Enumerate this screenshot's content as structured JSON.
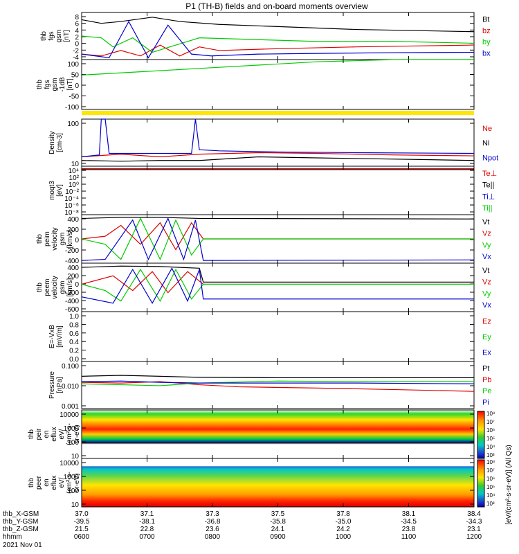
{
  "title": "P1 (TH-B) fields and on-board moments overview",
  "chart_data": [
    {
      "type": "line",
      "panel": "fgs",
      "ylabel_lines": [
        "thb",
        "fgs",
        "gsm",
        "[nT]"
      ],
      "y_ticks": [
        "8",
        "6",
        "4",
        "2",
        "0",
        "-2",
        "-4"
      ],
      "ylim": [
        -4.5,
        8.5
      ],
      "legend": [
        {
          "label": "Bt",
          "color": "#000000"
        },
        {
          "label": "bz",
          "color": "#dd0000"
        },
        {
          "label": "by",
          "color": "#00cc00"
        },
        {
          "label": "bx",
          "color": "#0000cc"
        }
      ],
      "series": [
        {
          "name": "Bt",
          "color": "#000000",
          "x": [
            0.0,
            0.05,
            0.1,
            0.18,
            0.25,
            0.35,
            0.5,
            0.7,
            1.0
          ],
          "y": [
            6.5,
            5.5,
            6.0,
            7.2,
            6.0,
            5.2,
            4.6,
            3.8,
            3.2
          ]
        },
        {
          "name": "bz",
          "color": "#dd0000",
          "x": [
            0.0,
            0.05,
            0.1,
            0.15,
            0.2,
            0.25,
            0.3,
            0.35,
            0.5,
            0.7,
            1.0
          ],
          "y": [
            -3.0,
            -3.5,
            -2.0,
            -3.5,
            -0.5,
            -3.5,
            -1.0,
            -2.0,
            -1.5,
            -1.0,
            -0.5
          ]
        },
        {
          "name": "by",
          "color": "#00cc00",
          "x": [
            0.0,
            0.05,
            0.08,
            0.13,
            0.18,
            0.24,
            0.3,
            0.45,
            0.6,
            0.8,
            1.0
          ],
          "y": [
            2.0,
            1.5,
            -1.0,
            1.5,
            -2.5,
            -0.5,
            1.5,
            1.0,
            0.5,
            0.5,
            0.0
          ]
        },
        {
          "name": "bx",
          "color": "#0000cc",
          "x": [
            0.0,
            0.07,
            0.12,
            0.17,
            0.22,
            0.28,
            0.33,
            0.45,
            0.6,
            0.8,
            1.0
          ],
          "y": [
            -3.0,
            -4.0,
            6.0,
            -4.0,
            5.0,
            -3.0,
            -3.5,
            -3.0,
            -2.8,
            -2.6,
            -2.5
          ]
        }
      ]
    },
    {
      "type": "line",
      "panel": "fgs-1dB",
      "ylabel_lines": [
        "thb",
        "fgs",
        "gsm",
        "-1dB",
        "[nT]"
      ],
      "y_ticks": [
        "100",
        "50",
        "0",
        "-50",
        "-100"
      ],
      "ylim": [
        -120,
        105
      ],
      "series": [
        {
          "name": "",
          "color": "#00cc00",
          "x": [
            0.0,
            0.15,
            0.3,
            0.45,
            0.6,
            0.8,
            1.0
          ],
          "y": [
            35,
            50,
            65,
            80,
            95,
            105,
            105
          ]
        }
      ]
    },
    {
      "type": "line",
      "panel": "density",
      "ylabel_lines": [
        "Density",
        "[cm-3]"
      ],
      "y_ticks": [
        "100",
        "10"
      ],
      "yscale": "log",
      "ylim": [
        4,
        400
      ],
      "legend": [
        {
          "label": "Ne",
          "color": "#dd0000"
        },
        {
          "label": "Ni",
          "color": "#000000"
        },
        {
          "label": "Npot",
          "color": "#0000cc"
        }
      ],
      "series": [
        {
          "name": "Ne",
          "color": "#dd0000",
          "x": [
            0.0,
            0.1,
            0.2,
            0.3,
            0.45,
            0.6,
            0.8,
            1.0
          ],
          "y": [
            10,
            13,
            10,
            13,
            15,
            14,
            12,
            11
          ]
        },
        {
          "name": "Ni",
          "color": "#000000",
          "x": [
            0.0,
            0.1,
            0.2,
            0.3,
            0.45,
            0.6,
            0.8,
            1.0
          ],
          "y": [
            7,
            6.5,
            7,
            7,
            10,
            9,
            8,
            7
          ]
        },
        {
          "name": "Npot",
          "color": "#0000cc",
          "x": [
            0.0,
            0.045,
            0.05,
            0.06,
            0.07,
            0.28,
            0.29,
            0.3,
            0.35,
            0.5,
            0.7,
            1.0
          ],
          "y": [
            10,
            12,
            400,
            400,
            14,
            14,
            400,
            20,
            18,
            16,
            15,
            14
          ]
        }
      ]
    },
    {
      "type": "line",
      "panel": "temperature",
      "ylabel_lines": [
        "moqt3",
        "[eV]"
      ],
      "y_ticks": [
        "10⁴",
        "10²",
        "10⁰",
        "10⁻²",
        "10⁻⁴",
        "10⁻⁶",
        "10⁻⁸"
      ],
      "legend": [
        {
          "label": "Te⊥",
          "color": "#dd0000"
        },
        {
          "label": "Te||",
          "color": "#000000"
        },
        {
          "label": "Ti⊥",
          "color": "#0000cc"
        },
        {
          "label": "Ti||",
          "color": "#00cc00"
        }
      ],
      "series": [
        {
          "name": "Te⊥",
          "color": "#dd0000",
          "x": [
            0.0,
            1.0
          ],
          "y": [
            0.95,
            0.95
          ]
        },
        {
          "name": "Te||",
          "color": "#000000",
          "x": [
            0.0,
            1.0
          ],
          "y": [
            0.93,
            0.93
          ]
        }
      ]
    },
    {
      "type": "line",
      "panel": "peim-velocity",
      "ylabel_lines": [
        "thb",
        "peim",
        "velocity",
        "gsm",
        "[km/s]"
      ],
      "y_ticks": [
        "400",
        "200",
        "0",
        "-200",
        "-400"
      ],
      "ylim": [
        -450,
        450
      ],
      "legend": [
        {
          "label": "Vt",
          "color": "#000000"
        },
        {
          "label": "Vz",
          "color": "#dd0000"
        },
        {
          "label": "Vy",
          "color": "#00cc00"
        },
        {
          "label": "Vx",
          "color": "#0000cc"
        }
      ],
      "series": [
        {
          "name": "Vt",
          "color": "#000000",
          "x": [
            0.0,
            0.1,
            0.2,
            0.3,
            1.0
          ],
          "y": [
            380,
            400,
            400,
            380,
            370
          ]
        },
        {
          "name": "Vz",
          "color": "#dd0000",
          "x": [
            0.0,
            0.06,
            0.1,
            0.15,
            0.2,
            0.24,
            0.28,
            0.31,
            1.0
          ],
          "y": [
            0,
            50,
            250,
            -100,
            300,
            -200,
            300,
            0,
            0
          ]
        },
        {
          "name": "Vy",
          "color": "#00cc00",
          "x": [
            0.0,
            0.06,
            0.1,
            0.15,
            0.2,
            0.24,
            0.28,
            0.31,
            1.0
          ],
          "y": [
            0,
            -100,
            -380,
            380,
            -380,
            350,
            -300,
            0,
            0
          ]
        },
        {
          "name": "Vx",
          "color": "#0000cc",
          "x": [
            0.0,
            0.06,
            0.13,
            0.17,
            0.22,
            0.26,
            0.29,
            0.31,
            1.0
          ],
          "y": [
            -400,
            -380,
            350,
            -380,
            380,
            -380,
            350,
            -400,
            -390
          ]
        }
      ]
    },
    {
      "type": "line",
      "panel": "peem-velocity",
      "ylabel_lines": [
        "thb",
        "peem",
        "velocity",
        "gsm",
        "[km/s]"
      ],
      "y_ticks": [
        "400",
        "200",
        "0",
        "-200",
        "-400",
        "-600"
      ],
      "ylim": [
        -650,
        500
      ],
      "legend": [
        {
          "label": "Vt",
          "color": "#000000"
        },
        {
          "label": "Vz",
          "color": "#dd0000"
        },
        {
          "label": "Vy",
          "color": "#00cc00"
        },
        {
          "label": "Vx",
          "color": "#0000cc"
        }
      ],
      "series": [
        {
          "name": "Vt",
          "color": "#000000",
          "x": [
            0.0,
            0.1,
            0.2,
            0.3,
            0.31,
            1.0
          ],
          "y": [
            400,
            430,
            420,
            380,
            50,
            50
          ]
        },
        {
          "name": "Vz",
          "color": "#dd0000",
          "x": [
            0.0,
            0.08,
            0.13,
            0.18,
            0.22,
            0.27,
            0.31,
            1.0
          ],
          "y": [
            0,
            200,
            -150,
            300,
            -200,
            300,
            0,
            0
          ]
        },
        {
          "name": "Vy",
          "color": "#00cc00",
          "x": [
            0.0,
            0.06,
            0.1,
            0.15,
            0.2,
            0.24,
            0.28,
            0.31,
            1.0
          ],
          "y": [
            0,
            -150,
            -400,
            350,
            -400,
            350,
            -350,
            0,
            0
          ]
        },
        {
          "name": "Vx",
          "color": "#0000cc",
          "x": [
            0.0,
            0.08,
            0.13,
            0.18,
            0.23,
            0.27,
            0.3,
            0.31,
            1.0
          ],
          "y": [
            -300,
            -450,
            350,
            -450,
            380,
            -400,
            350,
            -350,
            -350
          ]
        }
      ]
    },
    {
      "type": "line",
      "panel": "efield",
      "ylabel_lines": [
        "E=-VxB",
        "[mV/m]"
      ],
      "y_ticks": [
        "1.0",
        "0.8",
        "0.6",
        "0.4",
        "0.2",
        "0.0"
      ],
      "ylim": [
        0,
        1
      ],
      "legend": [
        {
          "label": "Ez",
          "color": "#dd0000"
        },
        {
          "label": "Ey",
          "color": "#00cc00"
        },
        {
          "label": "Ex",
          "color": "#0000cc"
        }
      ],
      "series": []
    },
    {
      "type": "line",
      "panel": "pressure",
      "ylabel_lines": [
        "Pressure",
        "[nPa]"
      ],
      "y_ticks": [
        "0.100",
        "0.010",
        "0.001"
      ],
      "yscale": "log",
      "ylim": [
        0.0005,
        0.15
      ],
      "legend": [
        {
          "label": "Pt",
          "color": "#000000"
        },
        {
          "label": "Pb",
          "color": "#dd0000"
        },
        {
          "label": "Pe",
          "color": "#00cc00"
        },
        {
          "label": "Pi",
          "color": "#0000cc"
        }
      ],
      "series": [
        {
          "name": "Pt",
          "color": "#000000",
          "x": [
            0.0,
            0.1,
            0.2,
            0.3,
            0.5,
            0.7,
            1.0
          ],
          "y": [
            0.025,
            0.028,
            0.025,
            0.022,
            0.021,
            0.021,
            0.021
          ]
        },
        {
          "name": "Pb",
          "color": "#dd0000",
          "x": [
            0.0,
            0.1,
            0.2,
            0.3,
            0.4,
            0.6,
            0.8,
            1.0
          ],
          "y": [
            0.012,
            0.011,
            0.013,
            0.009,
            0.007,
            0.006,
            0.005,
            0.004
          ]
        },
        {
          "name": "Pe",
          "color": "#00cc00",
          "x": [
            0.0,
            0.1,
            0.2,
            0.3,
            0.5,
            0.7,
            1.0
          ],
          "y": [
            0.01,
            0.009,
            0.008,
            0.011,
            0.014,
            0.013,
            0.013
          ]
        },
        {
          "name": "Pi",
          "color": "#0000cc",
          "x": [
            0.0,
            0.1,
            0.2,
            0.3,
            0.5,
            0.7,
            1.0
          ],
          "y": [
            0.013,
            0.014,
            0.012,
            0.011,
            0.011,
            0.011,
            0.01
          ]
        }
      ]
    },
    {
      "type": "heatmap",
      "panel": "peir-eflux",
      "ylabel_lines": [
        "thb",
        "peir",
        "en",
        "eflux",
        "eV/",
        "(cm²-s-",
        "sr-eV)"
      ],
      "y_ticks": [
        "10000",
        "1000",
        "100",
        "10"
      ],
      "yscale": "log"
    },
    {
      "type": "heatmap",
      "panel": "peer-eflux",
      "ylabel_lines": [
        "thb",
        "peer",
        "en",
        "eflux",
        "eV/",
        "(cm²-s-",
        "sr-eV)"
      ],
      "y_ticks": [
        "10000",
        "1000",
        "100",
        "10"
      ],
      "yscale": "log"
    }
  ],
  "colorbar": {
    "label": "[eV/(cm²-s-sr-eV)] (All Qs)",
    "top_ticks": [
      "10⁸",
      "10⁷",
      "10⁶",
      "10⁵",
      "10⁴",
      "10³"
    ],
    "bottom_ticks": [
      "10⁸",
      "10⁷",
      "10⁶",
      "10⁵",
      "10⁴",
      "10³"
    ]
  },
  "x_axis": {
    "row_labels": [
      "thb_X-GSM",
      "thb_Y-GSM",
      "thb_Z-GSM",
      "hhmm",
      "2021 Nov 01"
    ],
    "columns": [
      {
        "x": "37.0",
        "y": "-39.5",
        "z": "21.5",
        "hhmm": "0600"
      },
      {
        "x": "37.1",
        "y": "-38.1",
        "z": "22.8",
        "hhmm": "0700"
      },
      {
        "x": "37.3",
        "y": "-36.8",
        "z": "23.6",
        "hhmm": "0800"
      },
      {
        "x": "37.5",
        "y": "-35.8",
        "z": "24.1",
        "hhmm": "0900"
      },
      {
        "x": "37.8",
        "y": "-35.0",
        "z": "24.2",
        "hhmm": "1000"
      },
      {
        "x": "38.1",
        "y": "-34.5",
        "z": "23.8",
        "hhmm": "1100"
      },
      {
        "x": "38.4",
        "y": "-34.3",
        "z": "23.1",
        "hhmm": "1200"
      }
    ]
  }
}
